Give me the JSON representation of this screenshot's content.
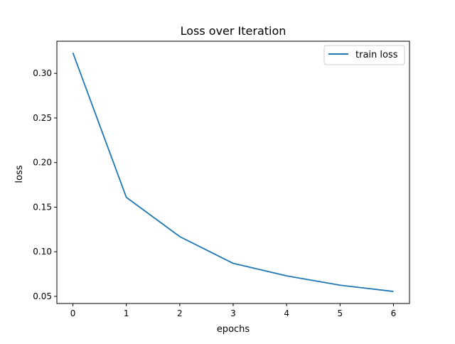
{
  "chart_data": {
    "type": "line",
    "title": "Loss over Iteration",
    "xlabel": "epochs",
    "ylabel": "loss",
    "x": [
      0,
      1,
      2,
      3,
      4,
      5,
      6
    ],
    "series": [
      {
        "name": "train loss",
        "color": "#1f77b4",
        "values": [
          0.323,
          0.161,
          0.117,
          0.087,
          0.073,
          0.0625,
          0.0555
        ]
      }
    ],
    "xticks": [
      "0",
      "1",
      "2",
      "3",
      "4",
      "5",
      "6"
    ],
    "yticks": [
      "0.05",
      "0.10",
      "0.15",
      "0.20",
      "0.25",
      "0.30"
    ],
    "xlim": [
      -0.3,
      6.3
    ],
    "ylim": [
      0.042,
      0.336
    ],
    "grid": false,
    "legend_position": "top-right"
  }
}
